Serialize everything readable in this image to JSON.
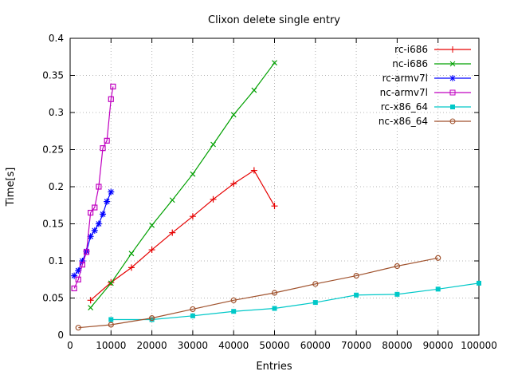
{
  "chart_data": {
    "type": "line",
    "title": "Clixon delete single entry",
    "xlabel": "Entries",
    "ylabel": "Time[s]",
    "xlim": [
      0,
      100000
    ],
    "ylim": [
      0,
      0.4
    ],
    "xticks": [
      0,
      10000,
      20000,
      30000,
      40000,
      50000,
      60000,
      70000,
      80000,
      90000,
      100000
    ],
    "xtick_labels": [
      "0",
      "10000",
      "20000",
      "30000",
      "40000",
      "50000",
      "60000",
      "70000",
      "80000",
      "90000",
      "100000"
    ],
    "yticks": [
      0,
      0.05,
      0.1,
      0.15,
      0.2,
      0.25,
      0.3,
      0.35,
      0.4
    ],
    "ytick_labels": [
      "0",
      "0.05",
      "0.1",
      "0.15",
      "0.2",
      "0.25",
      "0.3",
      "0.35",
      "0.4"
    ],
    "grid": true,
    "legend_position": "top-right",
    "series": [
      {
        "name": "rc-i686",
        "color": "#e60000",
        "marker": "plus",
        "x": [
          5000,
          10000,
          15000,
          20000,
          25000,
          30000,
          35000,
          40000,
          45000,
          50000
        ],
        "y": [
          0.047,
          0.071,
          0.091,
          0.115,
          0.138,
          0.16,
          0.183,
          0.204,
          0.222,
          0.174
        ]
      },
      {
        "name": "nc-i686",
        "color": "#00a000",
        "marker": "cross",
        "x": [
          5000,
          10000,
          15000,
          20000,
          25000,
          30000,
          35000,
          40000,
          45000,
          50000
        ],
        "y": [
          0.037,
          0.07,
          0.11,
          0.148,
          0.182,
          0.217,
          0.257,
          0.297,
          0.33,
          0.367
        ]
      },
      {
        "name": "rc-armv7l",
        "color": "#0000ff",
        "marker": "asterisk",
        "x": [
          1000,
          2000,
          3000,
          4000,
          5000,
          6000,
          7000,
          8000,
          9000,
          10000
        ],
        "y": [
          0.08,
          0.087,
          0.1,
          0.113,
          0.133,
          0.141,
          0.15,
          0.163,
          0.18,
          0.193
        ]
      },
      {
        "name": "nc-armv7l",
        "color": "#c000c0",
        "marker": "open-square",
        "x": [
          1000,
          2000,
          3000,
          4000,
          5000,
          6000,
          7000,
          8000,
          9000,
          10000,
          10500
        ],
        "y": [
          0.063,
          0.075,
          0.095,
          0.112,
          0.165,
          0.172,
          0.2,
          0.252,
          0.262,
          0.318,
          0.335
        ]
      },
      {
        "name": "rc-x86_64",
        "color": "#00c8c8",
        "marker": "filled-square",
        "x": [
          10000,
          20000,
          30000,
          40000,
          50000,
          60000,
          70000,
          80000,
          90000,
          100000
        ],
        "y": [
          0.021,
          0.021,
          0.026,
          0.032,
          0.036,
          0.044,
          0.054,
          0.055,
          0.062,
          0.07
        ]
      },
      {
        "name": "nc-x86_64",
        "color": "#a0522d",
        "marker": "open-circle",
        "x": [
          2000,
          10000,
          20000,
          30000,
          40000,
          50000,
          60000,
          70000,
          80000,
          90000
        ],
        "y": [
          0.01,
          0.014,
          0.023,
          0.035,
          0.047,
          0.057,
          0.069,
          0.08,
          0.093,
          0.104
        ]
      }
    ]
  }
}
